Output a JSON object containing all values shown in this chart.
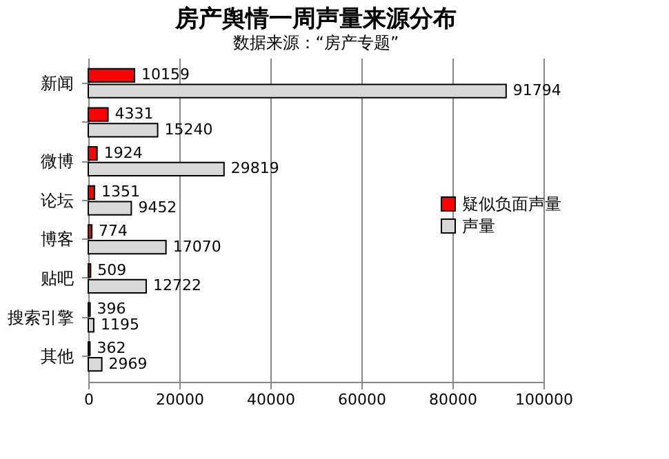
{
  "chart_data": {
    "type": "bar",
    "orientation": "horizontal",
    "title": "房产舆情一周声量来源分布",
    "subtitle": "数据来源：“房产专题”",
    "categories": [
      "新闻",
      null,
      "微博",
      "论坛",
      "博客",
      "贴吧",
      "搜索引擎",
      "其他"
    ],
    "series": [
      {
        "name": "疑似负面声量",
        "color": "#ff0000",
        "values": [
          10159,
          4331,
          1924,
          1351,
          774,
          509,
          396,
          362
        ]
      },
      {
        "name": "声量",
        "color": "#d9d9d9",
        "values": [
          91794,
          15240,
          29819,
          9452,
          17070,
          12722,
          1195,
          2969
        ]
      }
    ],
    "xlim": [
      0,
      100000
    ],
    "xticks": [
      0,
      20000,
      40000,
      60000,
      80000,
      100000
    ],
    "grid": "x",
    "legend": "right",
    "data_labels": true
  }
}
